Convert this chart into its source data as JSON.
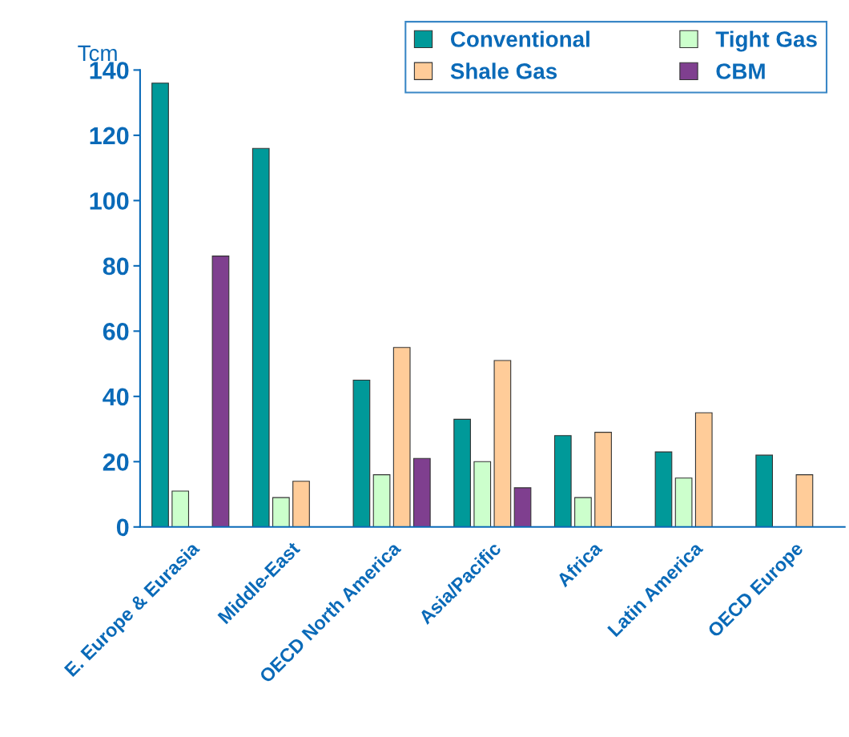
{
  "chart_data": {
    "type": "bar",
    "ylabel": "Tcm",
    "categories": [
      "E. Europe & Eurasia",
      "Middle-East",
      "OECD North America",
      "Asia/Pacific",
      "Africa",
      "Latin America",
      "OECD Europe"
    ],
    "series": [
      {
        "name": "Conventional",
        "color": "#009999",
        "values": [
          136,
          116,
          45,
          33,
          28,
          23,
          22
        ]
      },
      {
        "name": "Tight Gas",
        "color": "#ccffcc",
        "values": [
          11,
          9,
          16,
          20,
          9,
          15,
          null
        ]
      },
      {
        "name": "Shale Gas",
        "color": "#ffcc99",
        "values": [
          null,
          14,
          55,
          51,
          29,
          35,
          16
        ]
      },
      {
        "name": "CBM",
        "color": "#7f3f8f",
        "values": [
          83,
          null,
          21,
          12,
          null,
          null,
          null
        ]
      }
    ],
    "ylim": [
      0,
      140
    ],
    "yticks": [
      0,
      20,
      40,
      60,
      80,
      100,
      120,
      140
    ],
    "grid": false,
    "legend": "top right"
  }
}
